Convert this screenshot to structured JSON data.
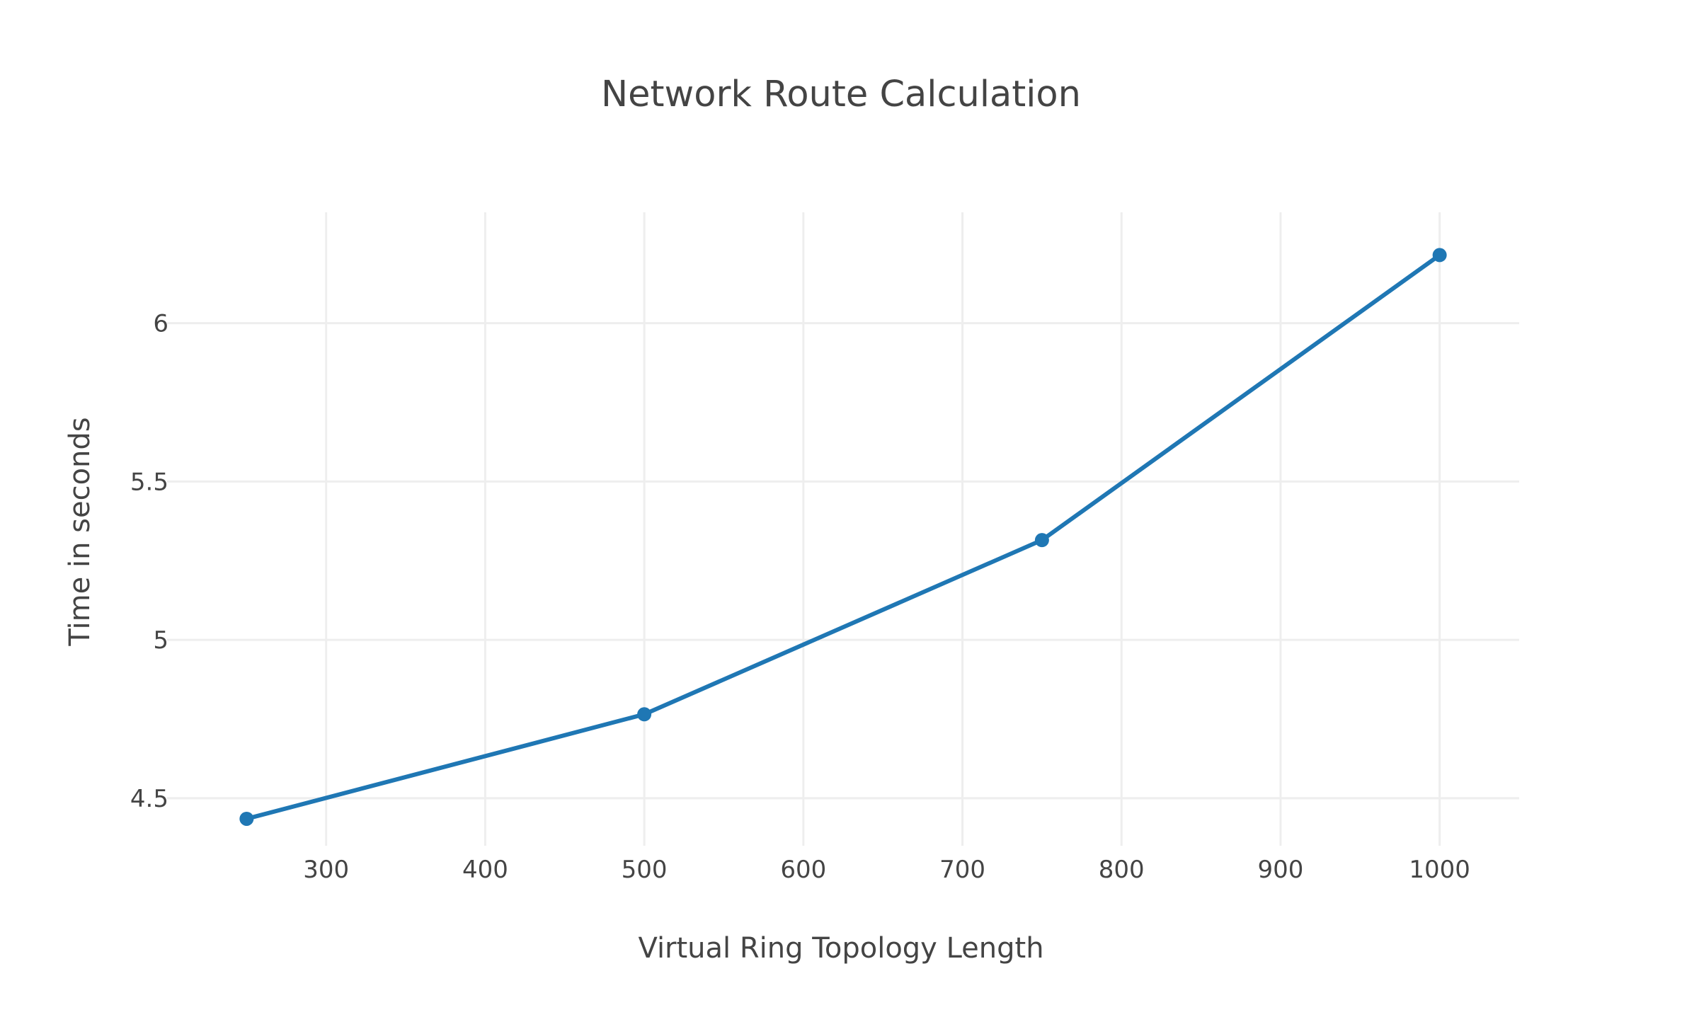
{
  "chart_data": {
    "type": "line",
    "title": "Network Route Calculation",
    "xlabel": "Virtual Ring Topology Length",
    "ylabel": "Time in seconds",
    "x": [
      250,
      500,
      750,
      1000
    ],
    "series": [
      {
        "values": [
          4.435,
          4.765,
          5.315,
          6.215
        ],
        "color": "#1f77b4"
      }
    ],
    "xlim": [
      200,
      1050
    ],
    "ylim": [
      4.35,
      6.35
    ],
    "xticks": [
      300,
      400,
      500,
      600,
      700,
      800,
      900,
      1000
    ],
    "xtick_labels": [
      "300",
      "400",
      "500",
      "600",
      "700",
      "800",
      "900",
      "1000"
    ],
    "yticks": [
      4.5,
      5,
      5.5,
      6
    ],
    "ytick_labels": [
      "4.5",
      "5",
      "5.5",
      "6"
    ],
    "grid": true,
    "legend": "none",
    "colors": {
      "line": "#1f77b4",
      "grid": "#eeeeee",
      "text": "#444444",
      "background": "#ffffff"
    }
  }
}
